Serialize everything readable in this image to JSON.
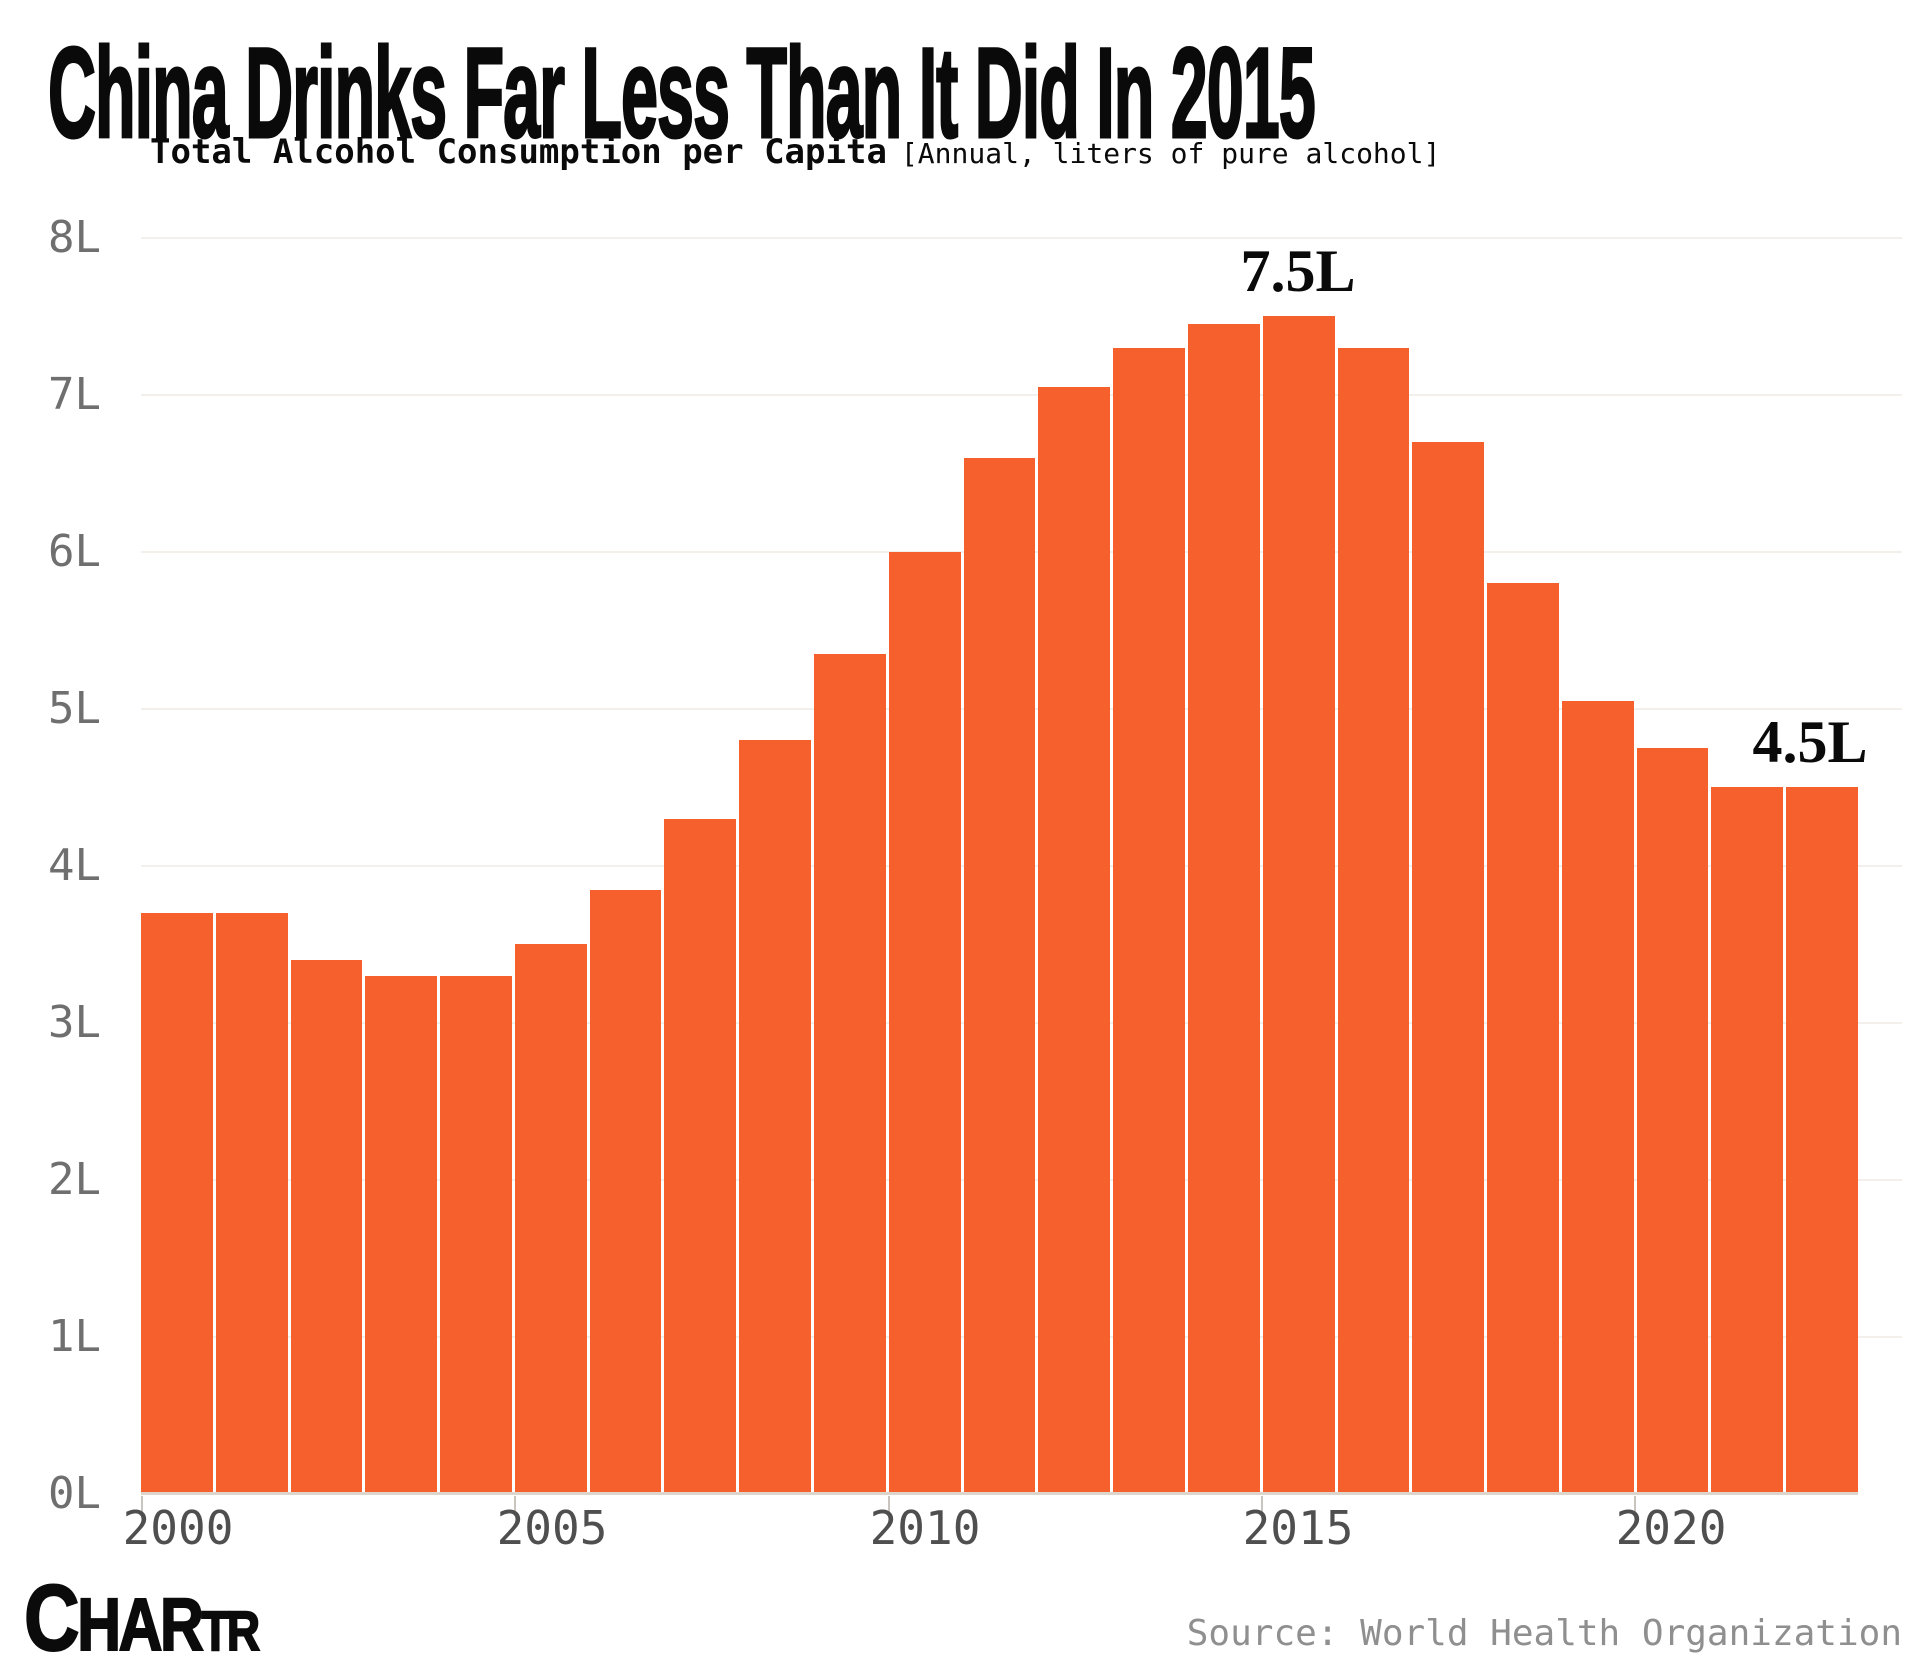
{
  "title": "China Drinks Far Less Than It Did In 2015",
  "subtitle": {
    "main": "Total Alcohol Consumption per Capita",
    "note": "[Annual, liters of pure alcohol]"
  },
  "branding": {
    "logo_letters": [
      "C",
      "H",
      "A",
      "R",
      "T",
      "R"
    ],
    "source_text": "Source: World Health Organization"
  },
  "colors": {
    "bar": "#f6602c",
    "background": "#ffffff",
    "gridline": "#f3f0ec",
    "axis_line": "#ddd5cb",
    "y_label": "#6f6f6f",
    "x_label": "#4f4f4f",
    "annotation_text": "#0a0a0a",
    "source_text": "#8f8f8f"
  },
  "chart_data": {
    "type": "bar",
    "title": "Total Alcohol Consumption per Capita",
    "unit": "liters of pure alcohol per capita, annual",
    "x": [
      2000,
      2001,
      2002,
      2003,
      2004,
      2005,
      2006,
      2007,
      2008,
      2009,
      2010,
      2011,
      2012,
      2013,
      2014,
      2015,
      2016,
      2017,
      2018,
      2019,
      2020,
      2021,
      2022
    ],
    "values": [
      3.7,
      3.7,
      3.4,
      3.3,
      3.3,
      3.5,
      3.85,
      4.3,
      4.8,
      5.35,
      6.0,
      6.6,
      7.05,
      7.3,
      7.45,
      7.5,
      7.3,
      6.7,
      5.8,
      5.05,
      4.75,
      4.5,
      4.5
    ],
    "ylim": [
      0,
      8
    ],
    "y_ticks": [
      "0L",
      "1L",
      "2L",
      "3L",
      "4L",
      "5L",
      "6L",
      "7L",
      "8L"
    ],
    "x_ticks": [
      2000,
      2005,
      2010,
      2015,
      2020
    ],
    "grid": "horizontal",
    "legend": "none",
    "annotations": [
      {
        "x": 2015,
        "text": "7.5L"
      },
      {
        "x": 2022,
        "text": "4.5L"
      }
    ],
    "source": "World Health Organization"
  }
}
